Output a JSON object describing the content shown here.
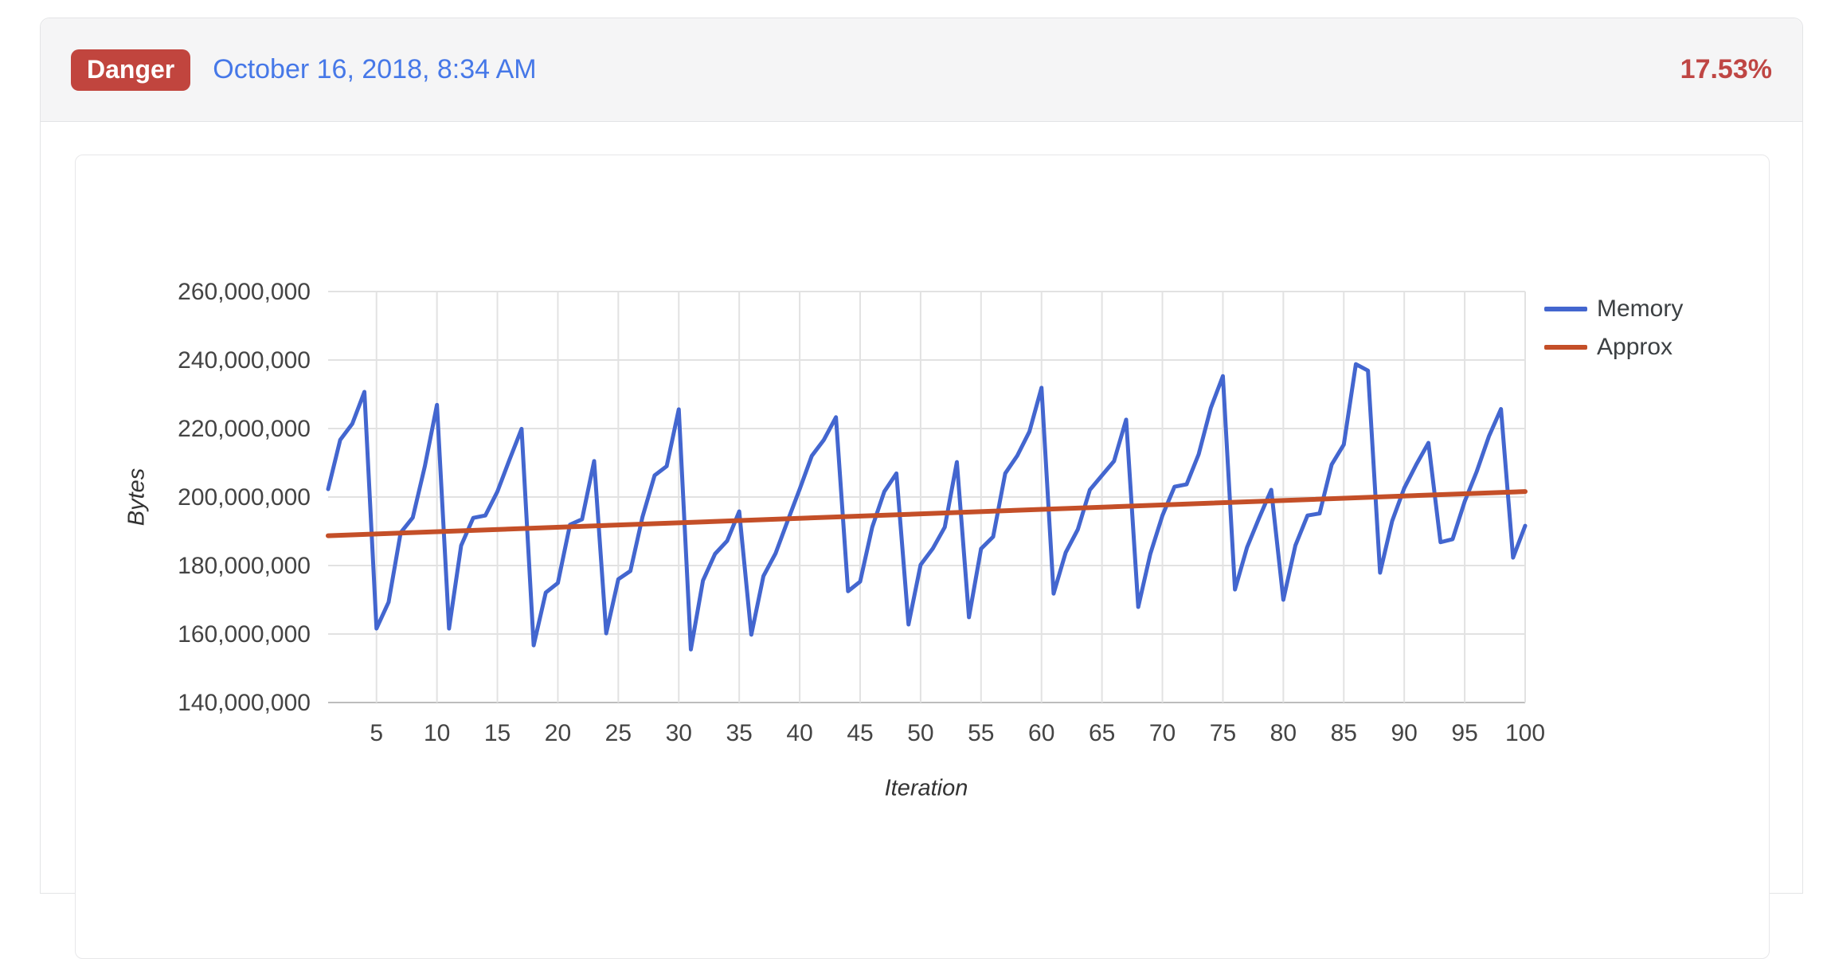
{
  "header": {
    "badge": "Danger",
    "date": "October 16, 2018, 8:34 AM",
    "percentage": "17.53%"
  },
  "colors": {
    "badge_bg": "#c1453e",
    "badge_text": "#ffffff",
    "date_link": "#4678e8",
    "percentage": "#bf4644",
    "panel_header_bg": "#f5f5f6",
    "panel_border": "#e3e4e6",
    "card_border": "#e7e7e9",
    "memory_line": "#4366cf",
    "approx_line": "#c44f28",
    "gridline": "#e2e2e2",
    "axis_baseline": "#bdbdbd",
    "tick_text": "#444444",
    "axis_title_text": "#333333",
    "legend_text": "#3c4043"
  },
  "chart_data": {
    "type": "line",
    "title": "",
    "xlabel": "Iteration",
    "ylabel": "Bytes",
    "xlim": [
      1,
      100
    ],
    "ylim": [
      140000000,
      260000000
    ],
    "xticks": [
      5,
      10,
      15,
      20,
      25,
      30,
      35,
      40,
      45,
      50,
      55,
      60,
      65,
      70,
      75,
      80,
      85,
      90,
      95,
      100
    ],
    "yticks": [
      140000000,
      160000000,
      180000000,
      200000000,
      220000000,
      240000000,
      260000000
    ],
    "grid": true,
    "legend_position": "right",
    "x_start": 1,
    "x_step": 1,
    "series": [
      {
        "name": "Memory",
        "color": "#4366cf",
        "values": [
          202300000,
          216700000,
          221400000,
          230700000,
          161600000,
          169300000,
          189600000,
          194000000,
          209000000,
          226900000,
          161600000,
          185800000,
          193900000,
          194600000,
          201600000,
          210900000,
          219900000,
          156700000,
          172100000,
          174900000,
          191900000,
          193500000,
          210500000,
          160200000,
          176000000,
          178400000,
          194200000,
          206300000,
          209000000,
          225600000,
          155500000,
          175600000,
          183400000,
          187200000,
          195800000,
          159800000,
          176900000,
          183500000,
          193000000,
          202300000,
          212000000,
          216700000,
          223300000,
          172500000,
          175300000,
          191200000,
          201600000,
          206900000,
          162800000,
          180200000,
          184900000,
          191200000,
          210200000,
          164900000,
          184900000,
          188400000,
          206900000,
          212100000,
          219100000,
          231900000,
          171800000,
          183800000,
          190500000,
          202100000,
          206300000,
          210500000,
          222600000,
          167900000,
          183400000,
          194600000,
          203000000,
          203700000,
          212500000,
          226000000,
          235300000,
          173000000,
          185300000,
          193900000,
          202100000,
          170000000,
          185900000,
          194600000,
          195200000,
          209500000,
          215300000,
          238800000,
          236900000,
          177900000,
          193000000,
          202600000,
          209500000,
          215800000,
          186800000,
          187700000,
          198700000,
          207500000,
          217700000,
          225700000,
          182300000,
          191600000
        ]
      },
      {
        "name": "Approx",
        "color": "#c44f28",
        "trend": "linear",
        "points": [
          [
            1,
            188700000
          ],
          [
            100,
            201600000
          ]
        ]
      }
    ]
  }
}
